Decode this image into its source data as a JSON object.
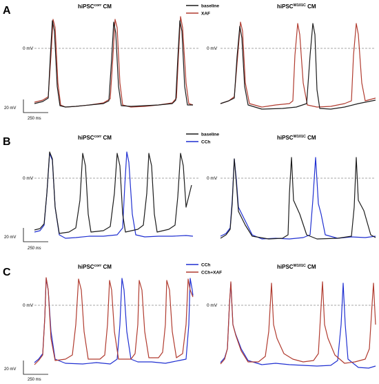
{
  "colors": {
    "baseline": "#1a1a1a",
    "xaf": "#b03a2e",
    "cch": "#1f2fd1",
    "cch_xaf": "#b03a2e"
  },
  "panels": [
    {
      "letter": "A",
      "left_title": "hiPSC",
      "left_sup": "corr",
      "left_suffix": " CM",
      "right_title": "hiPSC",
      "right_sup": "W101C",
      "right_suffix": " CM",
      "zero": "0 mV",
      "mv": "20 mV",
      "ms": "250 ms",
      "legend": [
        {
          "label": "baseline",
          "color": "#1a1a1a"
        },
        {
          "label": "XAF",
          "color": "#b03a2e"
        }
      ]
    },
    {
      "letter": "B",
      "left_title": "hiPSC",
      "left_sup": "corr",
      "left_suffix": " CM",
      "right_title": "hiPSC",
      "right_sup": "W101C",
      "right_suffix": " CM",
      "zero": "0 mV",
      "mv": "20 mV",
      "ms": "250 ms",
      "legend": [
        {
          "label": "baseline",
          "color": "#1a1a1a"
        },
        {
          "label": "CCh",
          "color": "#1f2fd1"
        }
      ]
    },
    {
      "letter": "C",
      "left_title": "hiPSC",
      "left_sup": "corr",
      "left_suffix": " CM",
      "right_title": "hiPSC",
      "right_sup": "W101C",
      "right_suffix": " CM",
      "zero": "0 mV",
      "mv": "20 mV",
      "ms": "250 ms",
      "legend": [
        {
          "label": "CCh",
          "color": "#1f2fd1"
        },
        {
          "label": "CCh+XAF",
          "color": "#b03a2e"
        }
      ]
    }
  ]
}
